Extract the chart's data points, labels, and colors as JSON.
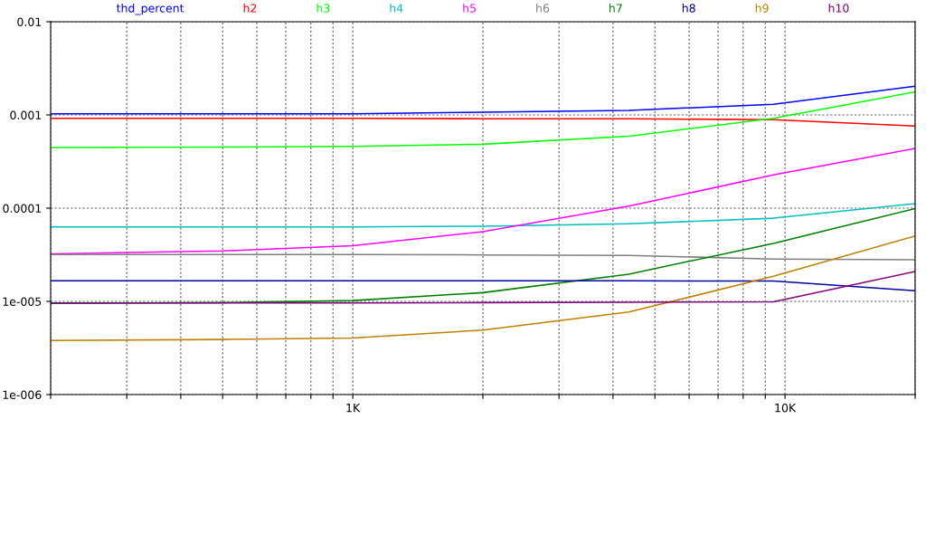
{
  "chart_data": {
    "type": "line",
    "log": "xy",
    "grid": true,
    "legend": "top",
    "marker": "none",
    "line_style": "solid",
    "x": [
      200,
      500,
      1000,
      2000,
      4350,
      9400,
      20000
    ],
    "xlim": [
      200,
      20000
    ],
    "ylim": [
      1e-06,
      0.01
    ],
    "xticks": [
      {
        "value": 200,
        "label": null
      },
      {
        "value": 300,
        "label": null
      },
      {
        "value": 400,
        "label": null
      },
      {
        "value": 500,
        "label": null
      },
      {
        "value": 600,
        "label": null
      },
      {
        "value": 700,
        "label": null
      },
      {
        "value": 800,
        "label": null
      },
      {
        "value": 900,
        "label": null
      },
      {
        "value": 1000,
        "label": "1K"
      },
      {
        "value": 2000,
        "label": null
      },
      {
        "value": 3000,
        "label": null
      },
      {
        "value": 4000,
        "label": null
      },
      {
        "value": 5000,
        "label": null
      },
      {
        "value": 6000,
        "label": null
      },
      {
        "value": 7000,
        "label": null
      },
      {
        "value": 8000,
        "label": null
      },
      {
        "value": 9000,
        "label": null
      },
      {
        "value": 10000,
        "label": "10K"
      },
      {
        "value": 20000,
        "label": null
      }
    ],
    "yticks": [
      {
        "value": 1e-06,
        "label": "1e-006"
      },
      {
        "value": 1e-05,
        "label": "1e-005"
      },
      0.0001,
      0.001,
      0.01
    ],
    "series": [
      {
        "name": "thd_percent",
        "color": "#0000ff",
        "values": [
          0.00103,
          0.00103,
          0.00103,
          0.00107,
          0.00112,
          0.0013,
          0.00203
        ]
      },
      {
        "name": "h2",
        "color": "#ff0000",
        "values": [
          0.00092,
          0.00092,
          0.00092,
          0.00091,
          0.00091,
          0.00089,
          0.00076
        ]
      },
      {
        "name": "h3",
        "color": "#00ff00",
        "values": [
          0.000448,
          0.000452,
          0.00046,
          0.000485,
          0.00059,
          0.00092,
          0.00177
        ]
      },
      {
        "name": "h4",
        "color": "#00c0c0",
        "values": [
          6.3e-05,
          6.3e-05,
          6.3e-05,
          6.4e-05,
          6.8e-05,
          7.8e-05,
          0.000112
        ]
      },
      {
        "name": "h5",
        "color": "#ff00ff",
        "values": [
          3.24e-05,
          3.48e-05,
          3.95e-05,
          5.6e-05,
          0.000105,
          0.000228,
          0.000438
        ]
      },
      {
        "name": "h6",
        "color": "#808080",
        "values": [
          3.18e-05,
          3.18e-05,
          3.18e-05,
          3.15e-05,
          3.11e-05,
          2.85e-05,
          2.79e-05
        ]
      },
      {
        "name": "h7",
        "color": "#008000",
        "values": [
          9.5e-06,
          9.7e-06,
          1.02e-05,
          1.24e-05,
          1.96e-05,
          4.19e-05,
          9.9e-05
        ]
      },
      {
        "name": "h8",
        "color": "#0000a0",
        "values": [
          1.66e-05,
          1.66e-05,
          1.66e-05,
          1.66e-05,
          1.66e-05,
          1.65e-05,
          1.3e-05
        ]
      },
      {
        "name": "h9",
        "color": "#c08000",
        "values": [
          3.8e-06,
          3.9e-06,
          4.04e-06,
          4.92e-06,
          7.67e-06,
          1.86e-05,
          5.03e-05
        ]
      },
      {
        "name": "h10",
        "color": "#800080",
        "values": [
          9.6e-06,
          9.6e-06,
          9.6e-06,
          9.7e-06,
          9.8e-06,
          9.9e-06,
          2.09e-05
        ]
      }
    ]
  }
}
